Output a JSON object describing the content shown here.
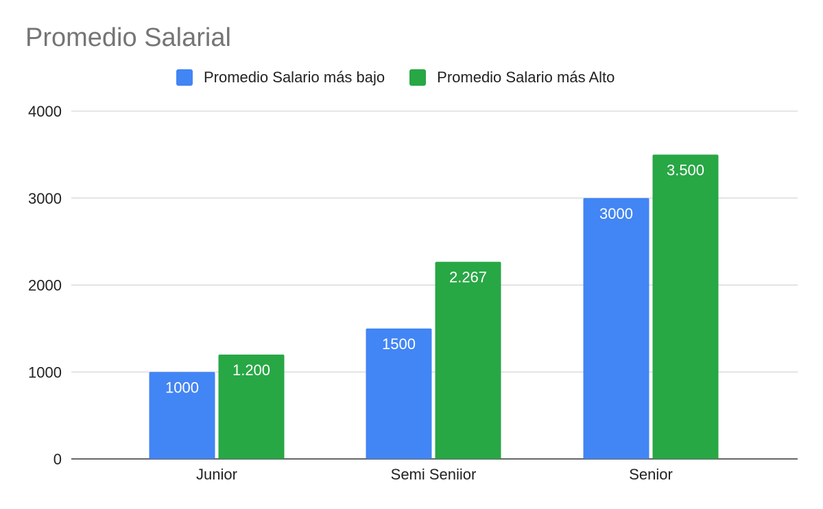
{
  "chart_data": {
    "type": "bar",
    "title": "Promedio Salarial",
    "categories": [
      "Junior",
      "Semi Seniior",
      "Senior"
    ],
    "series": [
      {
        "name": "Promedio Salario más bajo",
        "color": "#4285F4",
        "values": [
          1000,
          1500,
          3000
        ],
        "labels": [
          "1000",
          "1500",
          "3000"
        ]
      },
      {
        "name": "Promedio Salario más Alto",
        "color": "#28A745",
        "values": [
          1200,
          2267,
          3500
        ],
        "labels": [
          "1.200",
          "2.267",
          "3.500"
        ]
      }
    ],
    "yticks": [
      "0",
      "1000",
      "2000",
      "3000",
      "4000"
    ],
    "ylim": [
      0,
      4000
    ],
    "xlabel": "",
    "ylabel": "",
    "grid": true,
    "legend_position": "top"
  }
}
